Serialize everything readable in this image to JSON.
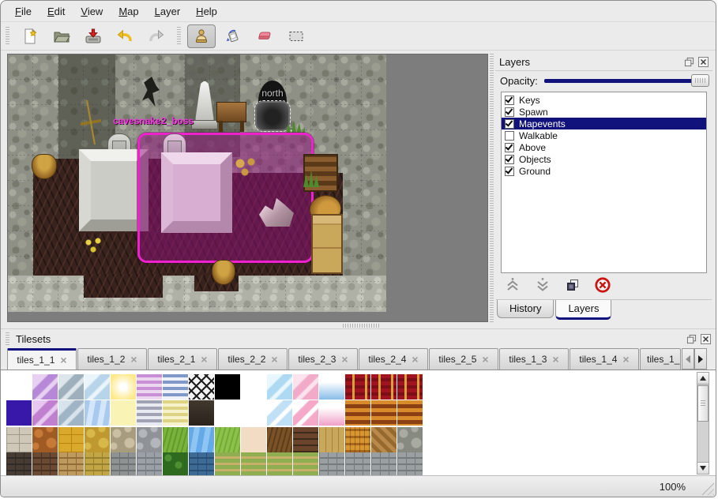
{
  "menu": {
    "items": [
      "File",
      "Edit",
      "View",
      "Map",
      "Layer",
      "Help"
    ]
  },
  "toolbar": {
    "groups": [
      [
        "new-file-icon",
        "open-folder-icon",
        "save-icon",
        "undo-icon",
        "redo-icon"
      ],
      [
        "stamp-tool-icon",
        "fill-bucket-icon",
        "eraser-icon",
        "rect-select-icon"
      ]
    ],
    "selected_tool": "stamp-tool-icon"
  },
  "map": {
    "gate_label": "north",
    "event_label": "cavesnake2_boss",
    "selection_color": "#ee22cc"
  },
  "layers_panel": {
    "title": "Layers",
    "titlebar_icons": [
      "float-panel-icon",
      "close-panel-icon"
    ],
    "opacity_label": "Opacity:",
    "opacity_percent": 100,
    "layers": [
      {
        "name": "Keys",
        "checked": true,
        "selected": false
      },
      {
        "name": "Spawn",
        "checked": true,
        "selected": false
      },
      {
        "name": "Mapevents",
        "checked": true,
        "selected": true
      },
      {
        "name": "Walkable",
        "checked": false,
        "selected": false
      },
      {
        "name": "Above",
        "checked": true,
        "selected": false
      },
      {
        "name": "Objects",
        "checked": true,
        "selected": false
      },
      {
        "name": "Ground",
        "checked": true,
        "selected": false
      }
    ],
    "action_icons": [
      "raise-layer-icon",
      "lower-layer-icon",
      "duplicate-layer-icon",
      "delete-layer-icon"
    ],
    "tabs": [
      {
        "label": "History",
        "active": false
      },
      {
        "label": "Layers",
        "active": true
      }
    ]
  },
  "tilesets_panel": {
    "title": "Tilesets",
    "titlebar_icons": [
      "float-panel-icon",
      "close-panel-icon"
    ],
    "tabs": [
      {
        "label": "tiles_1_1",
        "active": true
      },
      {
        "label": "tiles_1_2"
      },
      {
        "label": "tiles_2_1"
      },
      {
        "label": "tiles_2_2"
      },
      {
        "label": "tiles_2_3"
      },
      {
        "label": "tiles_2_4"
      },
      {
        "label": "tiles_2_5"
      },
      {
        "label": "tiles_1_3"
      },
      {
        "label": "tiles_1_4"
      },
      {
        "label": "tiles_1_",
        "truncated": true
      }
    ],
    "scroll_icons": [
      "scroll-left-icon",
      "scroll-right-icon"
    ],
    "tile_rows": [
      [
        [
          "solid",
          "#ffffff"
        ],
        [
          "crystal",
          "#b788d8",
          "#e7d0f2"
        ],
        [
          "crystal",
          "#9fb0bd",
          "#dde6ea"
        ],
        [
          "crystal",
          "#b8d4ea",
          "#eaf4fb"
        ],
        [
          "glow",
          "#ffe98a"
        ],
        [
          "stripes",
          "#c98fd6",
          "#ecd6f0"
        ],
        [
          "stripes",
          "#8099c8",
          "#eef2f8"
        ],
        [
          "lattice",
          "#f2f2f2",
          "#1d1d1d"
        ],
        [
          "solid",
          "#000000"
        ],
        [
          "solid",
          "#ffffff"
        ],
        [
          "crystal",
          "#aed9f2",
          "#e8f6fd"
        ],
        [
          "crystal",
          "#f2aac9",
          "#fbe3ee"
        ],
        [
          "icicle",
          "#ffffff",
          "#88bce8"
        ],
        [
          "curtain",
          "#a01422",
          "#d9a23c"
        ],
        [
          "curtain",
          "#a01422",
          "#d9a23c"
        ],
        [
          "curtain",
          "#a01422",
          "#d9a23c"
        ]
      ],
      [
        [
          "solid",
          "#3818a8"
        ],
        [
          "crystal",
          "#c080cf",
          "#e8c8f0"
        ],
        [
          "crystal",
          "#9fb4c4",
          "#d8e4ec"
        ],
        [
          "water",
          "#a9c9ef",
          "#d4e6fa"
        ],
        [
          "solid",
          "#f9f3b5"
        ],
        [
          "stripes",
          "#9fa3b3",
          "#e8eaf2"
        ],
        [
          "stripes",
          "#ded382",
          "#f6f2cc"
        ],
        [
          "sign",
          "#41382e",
          "#2a231c"
        ],
        [
          "solid",
          "#ffffff"
        ],
        [
          "solid",
          "#ffffff"
        ],
        [
          "crystal",
          "#bfe0f5",
          "#ffffff"
        ],
        [
          "crystal",
          "#f5a8c8",
          "#ffffff"
        ],
        [
          "icicle",
          "#ffffff",
          "#f0a0c8"
        ],
        [
          "awning",
          "#d98a2b",
          "#8a4012"
        ],
        [
          "awning",
          "#d98a2b",
          "#8a4012"
        ],
        [
          "awning",
          "#d98a2b",
          "#8a4012"
        ]
      ],
      [
        [
          "blocks",
          "#cfc8b8",
          "#9f988a"
        ],
        [
          "cobble",
          "#c77a38",
          "#a05a24"
        ],
        [
          "blocks",
          "#d9a92c",
          "#b8860f"
        ],
        [
          "cobble",
          "#d9b84a",
          "#bf9830"
        ],
        [
          "cobble",
          "#cabfa2",
          "#a89c7e"
        ],
        [
          "cobble",
          "#b3b7bb",
          "#8f9397"
        ],
        [
          "grass",
          "#7ab33b",
          "#649a2a"
        ],
        [
          "water",
          "#64a9e8",
          "#8fc5f2"
        ],
        [
          "grass",
          "#8cc24a",
          "#74aa36"
        ],
        [
          "solid",
          "#f2dcc4"
        ],
        [
          "grass",
          "#7a5228",
          "#5e3c1a"
        ],
        [
          "shingle",
          "#69432a",
          "#3f2a18"
        ],
        [
          "planks",
          "#c9a85c",
          "#a8863e"
        ],
        [
          "weave",
          "#d9952f",
          "#a8661a"
        ],
        [
          "herring",
          "#b8894a",
          "#96692f"
        ],
        [
          "cobble",
          "#a9aba2",
          "#878a80"
        ]
      ],
      [
        [
          "wall",
          "#463c34",
          "#2f2823"
        ],
        [
          "wall",
          "#6b4a33",
          "#4a3020"
        ],
        [
          "wall",
          "#bf9a5f",
          "#8f6c38"
        ],
        [
          "wall",
          "#c2a645",
          "#97802b"
        ],
        [
          "wall",
          "#8f9292",
          "#6f7272"
        ],
        [
          "wall",
          "#9aa0a6",
          "#777d83"
        ],
        [
          "hedge",
          "#2f6b1f",
          "#4e8f33"
        ],
        [
          "wall",
          "#3e6a96",
          "#2a4d73"
        ],
        [
          "farm",
          "#8fae52",
          "#c9b06a"
        ],
        [
          "farm",
          "#8fae52",
          "#c9b06a"
        ],
        [
          "farm",
          "#8fae52",
          "#c9b06a"
        ],
        [
          "farm",
          "#8fae52",
          "#c9b06a"
        ],
        [
          "wall",
          "#9aa0a2",
          "#757b7d"
        ],
        [
          "wall",
          "#9aa0a2",
          "#757b7d"
        ],
        [
          "wall",
          "#9aa0a2",
          "#757b7d"
        ],
        [
          "wall",
          "#9aa0a2",
          "#757b7d"
        ]
      ]
    ]
  },
  "status_bar": {
    "zoom_level": "100%"
  },
  "colors": {
    "accent_navy": "#12127c",
    "selection_magenta": "#ee22cc",
    "window_bg": "#ebebeb",
    "event_label_magenta": "#f03ade"
  }
}
